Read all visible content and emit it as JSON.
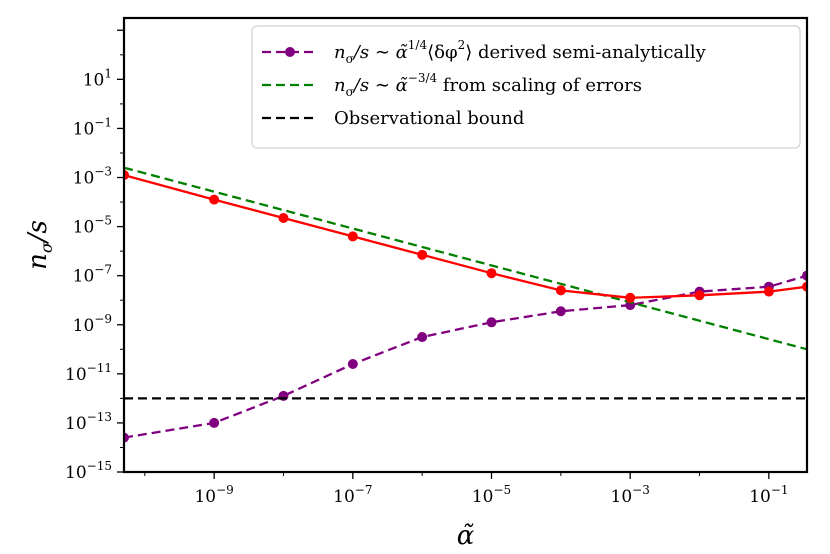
{
  "chart_data": {
    "type": "line",
    "xlabel": "α̃",
    "ylabel": "nσ/s",
    "xscale": "log",
    "yscale": "log",
    "xlim_log10": [
      -10.3,
      -0.45
    ],
    "ylim_log10": [
      -15,
      3.5
    ],
    "xticks": [
      {
        "label": "10",
        "exp": "−9",
        "log10": -9
      },
      {
        "label": "10",
        "exp": "−7",
        "log10": -7
      },
      {
        "label": "10",
        "exp": "−5",
        "log10": -5
      },
      {
        "label": "10",
        "exp": "−3",
        "log10": -3
      },
      {
        "label": "10",
        "exp": "−1",
        "log10": -1
      }
    ],
    "yticks": [
      {
        "label": "10",
        "exp": "1",
        "log10": 1
      },
      {
        "label": "10",
        "exp": "−1",
        "log10": -1
      },
      {
        "label": "10",
        "exp": "−3",
        "log10": -3
      },
      {
        "label": "10",
        "exp": "−5",
        "log10": -5
      },
      {
        "label": "10",
        "exp": "−7",
        "log10": -7
      },
      {
        "label": "10",
        "exp": "−9",
        "log10": -9
      },
      {
        "label": "10",
        "exp": "−11",
        "log10": -11
      },
      {
        "label": "10",
        "exp": "−13",
        "log10": -13
      },
      {
        "label": "10",
        "exp": "−15",
        "log10": -15
      }
    ],
    "legend_position": "top-right",
    "series": [
      {
        "name": "semi_analytic",
        "legend": {
          "pre": "n",
          "sub": "σ",
          "mid": "/s ∼ α̃",
          "sup": "1/4",
          "post": "⟨δφ",
          "sup2": "2",
          "tail": "⟩ derived semi-analytically"
        },
        "color": "#800080",
        "style": "dashed",
        "marker": true,
        "x_log10": [
          -10.3,
          -9,
          -8,
          -7,
          -6,
          -5,
          -4,
          -3,
          -2,
          -1,
          -0.45
        ],
        "y_log10": [
          -13.6,
          -13.0,
          -11.9,
          -10.6,
          -9.5,
          -8.9,
          -8.45,
          -8.2,
          -7.65,
          -7.45,
          -7.0
        ]
      },
      {
        "name": "scaling_errors",
        "legend": {
          "pre": "n",
          "sub": "σ",
          "mid": "/s ∼ α̃",
          "sup": "−3/4",
          "post": " from scaling of errors"
        },
        "color": "#008000",
        "style": "dashed",
        "marker": false,
        "x_log10": [
          -10.3,
          -0.45
        ],
        "y_log10": [
          -2.6,
          -10.0
        ]
      },
      {
        "name": "observational_bound",
        "legend": {
          "text": "Observational bound"
        },
        "color": "#000000",
        "style": "dashed",
        "marker": false,
        "x_log10": [
          -10.3,
          -0.45
        ],
        "y_log10": [
          -12.0,
          -12.0
        ]
      },
      {
        "name": "combined",
        "color": "#ff0000",
        "style": "solid",
        "marker": true,
        "x_log10": [
          -10.3,
          -9,
          -8,
          -7,
          -6,
          -5,
          -4,
          -3,
          -2,
          -1,
          -0.45
        ],
        "y_log10": [
          -2.9,
          -3.9,
          -4.65,
          -5.4,
          -6.15,
          -6.9,
          -7.6,
          -7.9,
          -7.8,
          -7.65,
          -7.45
        ]
      }
    ]
  }
}
